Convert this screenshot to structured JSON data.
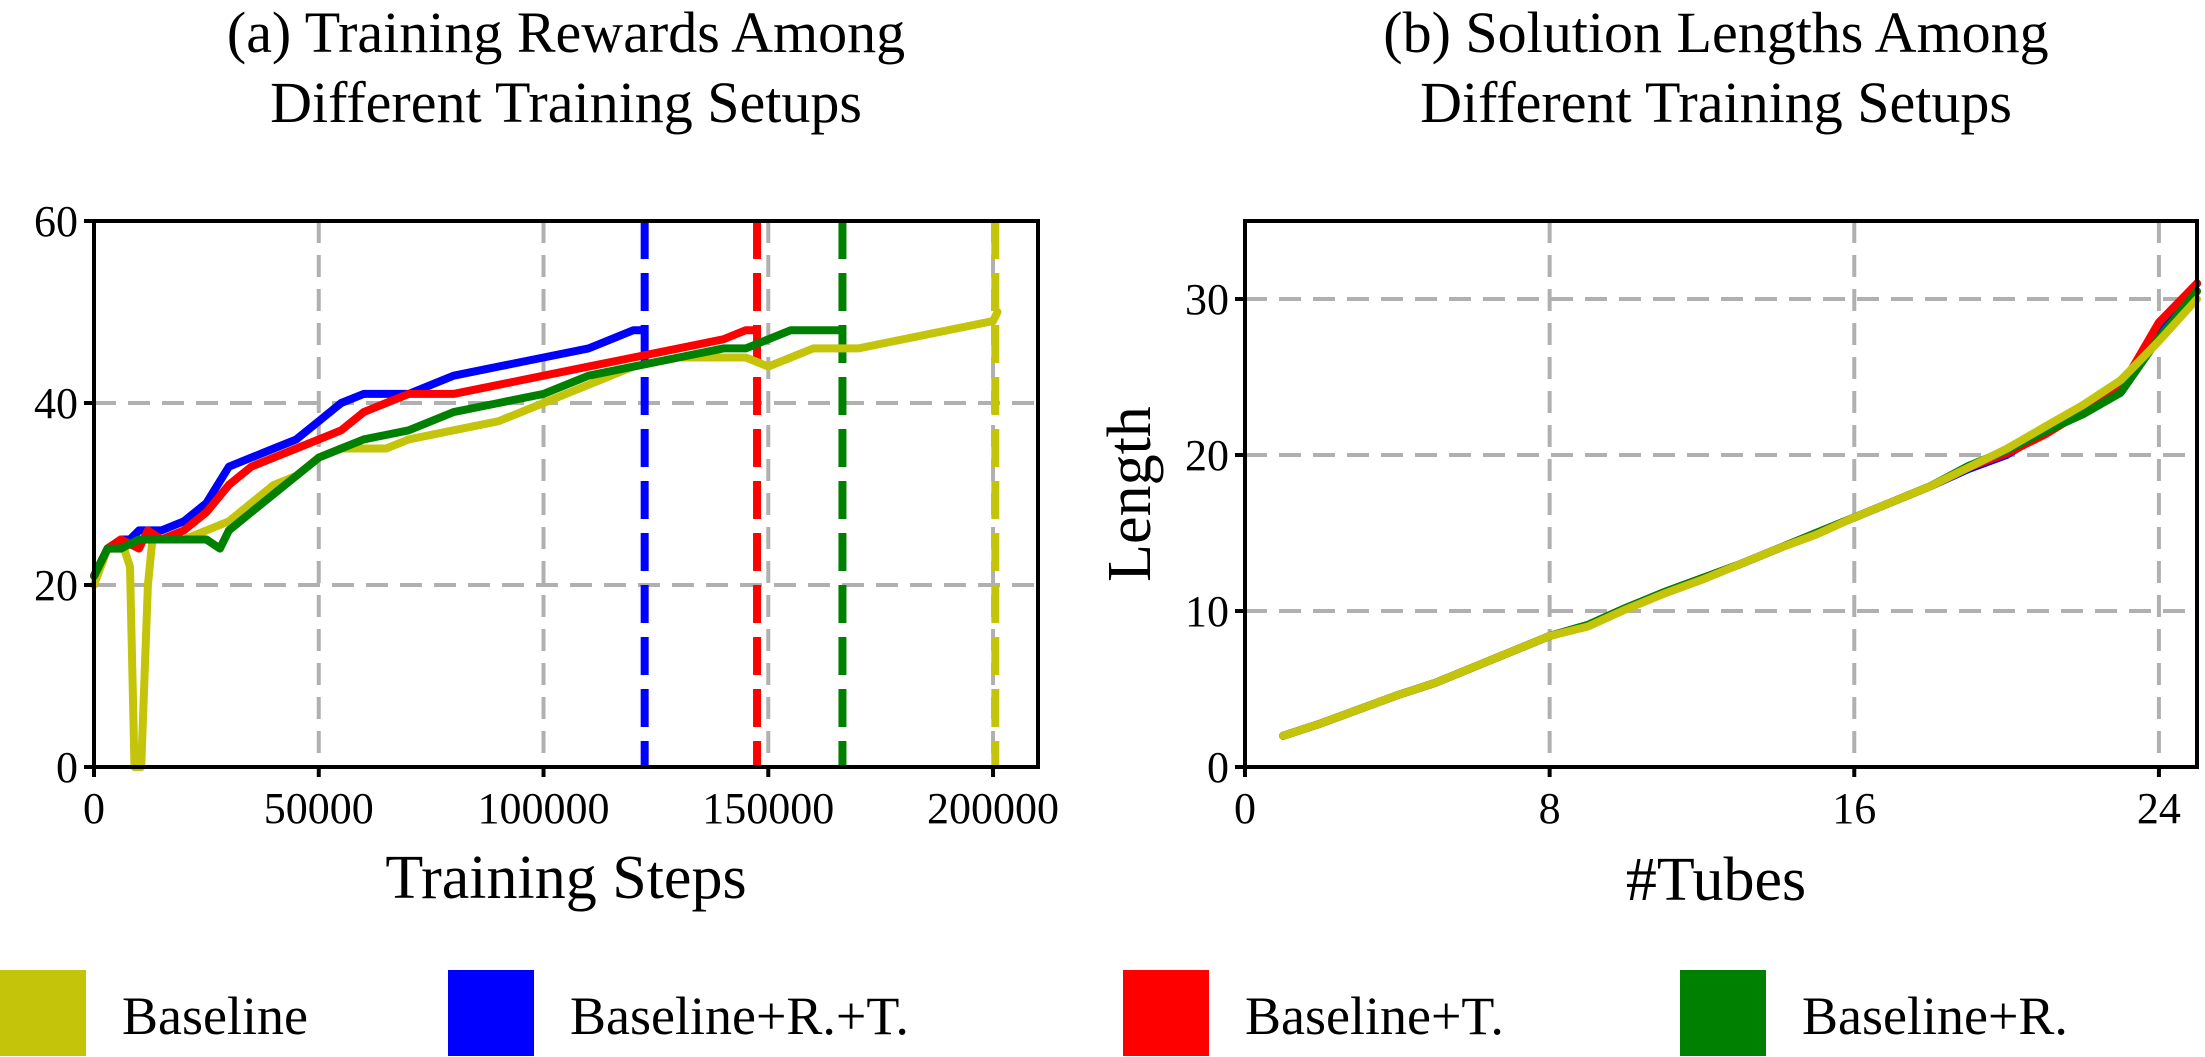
{
  "colors": {
    "Baseline": "#c4c40a",
    "Baseline+R.+T.": "#0000ff",
    "Baseline+T.": "#ff0000",
    "Baseline+R.": "#008000"
  },
  "legend": {
    "items": [
      {
        "name": "Baseline",
        "color": "#c4c40a"
      },
      {
        "name": "Baseline+R.+T.",
        "color": "#0000ff"
      },
      {
        "name": "Baseline+T.",
        "color": "#ff0000"
      },
      {
        "name": "Baseline+R.",
        "color": "#008000"
      }
    ]
  },
  "chart_data": [
    {
      "type": "line",
      "title": [
        "(a) Training Rewards Among",
        "Different Training Setups"
      ],
      "xlabel": "Training Steps",
      "ylabel": "",
      "xlim": [
        0,
        210000
      ],
      "ylim": [
        0,
        60
      ],
      "xticks": [
        0,
        50000,
        100000,
        150000,
        200000
      ],
      "xtick_labels": [
        "0",
        "50000",
        "100000",
        "150000",
        "200000"
      ],
      "yticks": [
        0,
        20,
        40,
        60
      ],
      "ytick_labels": [
        "0",
        "20",
        "40",
        "60"
      ],
      "grid": true,
      "series": [
        {
          "name": "Baseline",
          "color": "#c4c40a",
          "x": [
            0,
            3000,
            6000,
            8000,
            9000,
            10500,
            12000,
            13000,
            15000,
            20000,
            25000,
            30000,
            35000,
            40000,
            45000,
            50000,
            55000,
            60000,
            65000,
            70000,
            80000,
            90000,
            100000,
            110000,
            120000,
            130000,
            140000,
            145000,
            150000,
            155000,
            160000,
            170000,
            180000,
            190000,
            200000,
            201000
          ],
          "y": [
            20,
            24,
            25,
            22,
            0,
            0,
            20,
            25,
            25,
            25,
            26,
            27,
            29,
            31,
            32,
            34,
            35,
            35,
            35,
            36,
            37,
            38,
            40,
            42,
            44,
            45,
            45,
            45,
            44,
            45,
            46,
            46,
            47,
            48,
            49,
            50
          ]
        },
        {
          "name": "Baseline+R.+T.",
          "color": "#0000ff",
          "x": [
            0,
            3000,
            6000,
            8000,
            10000,
            15000,
            20000,
            25000,
            30000,
            35000,
            40000,
            45000,
            50000,
            55000,
            60000,
            65000,
            70000,
            80000,
            90000,
            100000,
            110000,
            115000,
            120000,
            122000
          ],
          "y": [
            21,
            24,
            25,
            25,
            26,
            26,
            27,
            29,
            33,
            34,
            35,
            36,
            38,
            40,
            41,
            41,
            41,
            43,
            44,
            45,
            46,
            47,
            48,
            48
          ]
        },
        {
          "name": "Baseline+T.",
          "color": "#ff0000",
          "x": [
            0,
            3000,
            6000,
            10000,
            12000,
            15000,
            20000,
            25000,
            30000,
            35000,
            40000,
            45000,
            50000,
            55000,
            60000,
            65000,
            70000,
            80000,
            90000,
            100000,
            110000,
            120000,
            130000,
            140000,
            145000,
            147000
          ],
          "y": [
            21,
            24,
            25,
            24,
            26,
            25,
            26,
            28,
            31,
            33,
            34,
            35,
            36,
            37,
            39,
            40,
            41,
            41,
            42,
            43,
            44,
            45,
            46,
            47,
            48,
            48
          ]
        },
        {
          "name": "Baseline+R.",
          "color": "#008000",
          "x": [
            0,
            3000,
            6000,
            10000,
            15000,
            20000,
            25000,
            28000,
            30000,
            35000,
            40000,
            45000,
            50000,
            55000,
            60000,
            70000,
            80000,
            90000,
            100000,
            110000,
            120000,
            130000,
            140000,
            145000,
            150000,
            155000,
            160000,
            166000
          ],
          "y": [
            21,
            24,
            24,
            25,
            25,
            25,
            25,
            24,
            26,
            28,
            30,
            32,
            34,
            35,
            36,
            37,
            39,
            40,
            41,
            43,
            44,
            45,
            46,
            46,
            47,
            48,
            48,
            48
          ]
        }
      ],
      "vlines": [
        {
          "x": 122500,
          "color": "#0000ff"
        },
        {
          "x": 147500,
          "color": "#ff0000"
        },
        {
          "x": 166500,
          "color": "#008000"
        },
        {
          "x": 200500,
          "color": "#c4c40a"
        }
      ]
    },
    {
      "type": "line",
      "title": [
        "(b) Solution Lengths Among",
        "Different Training Setups"
      ],
      "xlabel": "#Tubes",
      "ylabel": "Length",
      "xlim": [
        0,
        25
      ],
      "ylim": [
        0,
        35
      ],
      "xticks": [
        0,
        8,
        16,
        24
      ],
      "xtick_labels": [
        "0",
        "8",
        "16",
        "24"
      ],
      "yticks": [
        0,
        10,
        20,
        30
      ],
      "ytick_labels": [
        "0",
        "10",
        "20",
        "30"
      ],
      "grid": true,
      "series": [
        {
          "name": "Baseline+R.+T.",
          "color": "#0000ff",
          "x": [
            1,
            2,
            3,
            4,
            5,
            6,
            7,
            8,
            9,
            10,
            11,
            12,
            13,
            14,
            15,
            16,
            17,
            18,
            19,
            20,
            21,
            22,
            23,
            24,
            25
          ],
          "y": [
            2,
            2.8,
            3.7,
            4.6,
            5.4,
            6.4,
            7.4,
            8.4,
            9.1,
            10.2,
            11.2,
            12.1,
            13,
            14,
            15,
            16,
            17,
            18,
            19.1,
            20,
            21.5,
            23,
            24.5,
            28,
            31
          ]
        },
        {
          "name": "Baseline+T.",
          "color": "#ff0000",
          "x": [
            1,
            2,
            3,
            4,
            5,
            6,
            7,
            8,
            9,
            10,
            11,
            12,
            13,
            14,
            15,
            16,
            17,
            18,
            19,
            20,
            21,
            22,
            23,
            24,
            25
          ],
          "y": [
            2,
            2.8,
            3.7,
            4.6,
            5.4,
            6.4,
            7.4,
            8.4,
            9.1,
            10.2,
            11.2,
            12.1,
            13,
            14,
            15,
            16,
            17,
            18,
            19.2,
            20.1,
            21.3,
            22.8,
            24.3,
            28.5,
            31
          ]
        },
        {
          "name": "Baseline+R.",
          "color": "#008000",
          "x": [
            1,
            2,
            3,
            4,
            5,
            6,
            7,
            8,
            9,
            10,
            11,
            12,
            13,
            14,
            15,
            16,
            17,
            18,
            19,
            20,
            21,
            22,
            23,
            24,
            25
          ],
          "y": [
            2,
            2.8,
            3.7,
            4.6,
            5.4,
            6.4,
            7.4,
            8.4,
            9.1,
            10.2,
            11.2,
            12.1,
            13,
            14,
            15,
            16,
            17,
            18,
            19.3,
            20.3,
            21.5,
            22.6,
            24,
            27.5,
            30.5
          ]
        },
        {
          "name": "Baseline",
          "color": "#c4c40a",
          "x": [
            1,
            2,
            3,
            4,
            5,
            6,
            7,
            8,
            9,
            10,
            11,
            12,
            13,
            14,
            15,
            16,
            17,
            18,
            19,
            20,
            21,
            22,
            23,
            24,
            25
          ],
          "y": [
            2,
            2.8,
            3.7,
            4.6,
            5.4,
            6.4,
            7.4,
            8.4,
            9.0,
            10.1,
            11.1,
            12.0,
            13,
            14,
            14.9,
            16,
            17,
            18,
            19.2,
            20.4,
            21.8,
            23.2,
            24.8,
            27.3,
            30
          ]
        }
      ]
    }
  ]
}
